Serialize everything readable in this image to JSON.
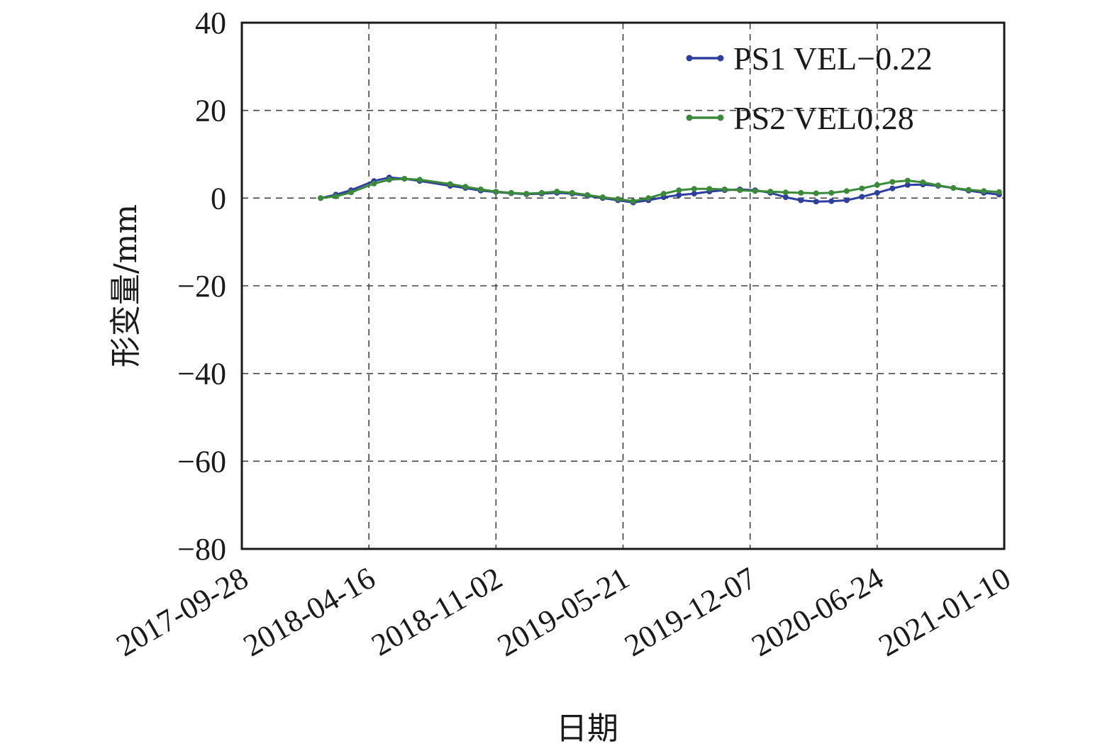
{
  "chart_data": {
    "type": "line",
    "xlabel": "日期",
    "ylabel": "形变量/mm",
    "ylim": [
      -80,
      40
    ],
    "yticks": [
      "40",
      "20",
      "0",
      "−20",
      "−40",
      "−60",
      "−80"
    ],
    "yticks_values": [
      40,
      20,
      0,
      -20,
      -40,
      -60,
      -80
    ],
    "xlim": [
      "2017-09-28",
      "2021-01-10"
    ],
    "xticks": [
      "2017-09-28",
      "2018-04-16",
      "2018-11-02",
      "2019-05-21",
      "2019-12-07",
      "2020-06-24",
      "2021-01-10"
    ],
    "grid": true,
    "grid_style": "dashed",
    "legend_position": "top-right",
    "x": [
      "2018-01-30",
      "2018-02-23",
      "2018-03-19",
      "2018-04-24",
      "2018-05-18",
      "2018-06-11",
      "2018-07-05",
      "2018-08-22",
      "2018-09-15",
      "2018-10-09",
      "2018-11-02",
      "2018-11-26",
      "2018-12-20",
      "2019-01-13",
      "2019-02-06",
      "2019-03-02",
      "2019-03-26",
      "2019-04-19",
      "2019-05-13",
      "2019-06-06",
      "2019-06-30",
      "2019-07-24",
      "2019-08-17",
      "2019-09-10",
      "2019-10-04",
      "2019-10-28",
      "2019-11-21",
      "2019-12-15",
      "2020-01-08",
      "2020-02-01",
      "2020-02-25",
      "2020-03-20",
      "2020-04-13",
      "2020-05-07",
      "2020-05-31",
      "2020-06-24",
      "2020-07-18",
      "2020-08-11",
      "2020-09-04",
      "2020-09-28",
      "2020-10-22",
      "2020-11-15",
      "2020-12-09",
      "2021-01-02"
    ],
    "series": [
      {
        "name": "PS1 VEL−0.22",
        "color": "#2e3f9e",
        "values": [
          0.0,
          0.8,
          1.8,
          3.9,
          4.7,
          4.4,
          3.9,
          2.8,
          2.3,
          1.7,
          1.4,
          1.1,
          0.9,
          1.0,
          1.2,
          1.0,
          0.5,
          0.0,
          -0.5,
          -1.0,
          -0.5,
          0.2,
          0.7,
          1.0,
          1.5,
          1.8,
          2.0,
          1.8,
          1.2,
          0.2,
          -0.5,
          -0.8,
          -0.7,
          -0.5,
          0.3,
          1.2,
          2.2,
          3.0,
          3.1,
          2.8,
          2.3,
          1.7,
          1.2,
          0.8
        ]
      },
      {
        "name": "PS2 VEL0.28",
        "color": "#3a8a3a",
        "values": [
          0.0,
          0.4,
          1.3,
          3.3,
          4.2,
          4.4,
          4.2,
          3.2,
          2.6,
          2.0,
          1.5,
          1.2,
          1.0,
          1.2,
          1.5,
          1.2,
          0.7,
          0.2,
          -0.2,
          -0.7,
          0.0,
          1.0,
          1.8,
          2.1,
          2.1,
          2.0,
          1.8,
          1.6,
          1.5,
          1.3,
          1.2,
          1.1,
          1.2,
          1.6,
          2.2,
          3.0,
          3.7,
          4.0,
          3.6,
          2.9,
          2.3,
          1.9,
          1.6,
          1.4
        ]
      }
    ]
  }
}
